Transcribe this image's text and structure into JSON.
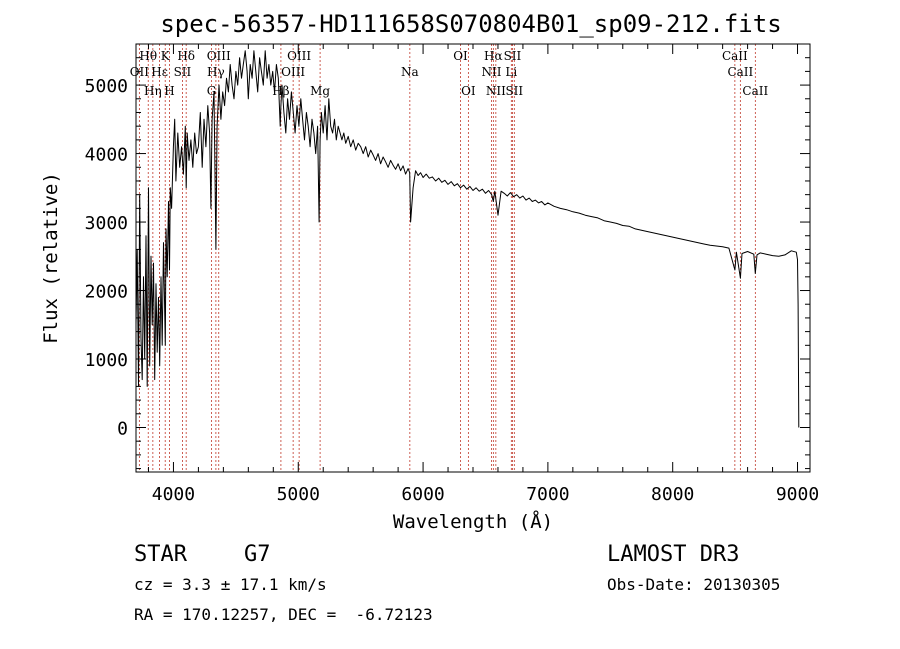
{
  "chart_data": {
    "type": "line",
    "title": "spec-56357-HD111658S070804B01_sp09-212.fits",
    "xlabel": "Wavelength (Å)",
    "ylabel": "Flux (relative)",
    "xlim": [
      3700,
      9100
    ],
    "ylim": [
      -650,
      5600
    ],
    "x_ticks": [
      4000,
      5000,
      6000,
      7000,
      8000,
      9000
    ],
    "y_ticks": [
      0,
      1000,
      2000,
      3000,
      4000,
      5000
    ],
    "x_tick_labels": [
      "4000",
      "5000",
      "6000",
      "7000",
      "8000",
      "9000"
    ],
    "y_tick_labels": [
      "0",
      "1000",
      "2000",
      "3000",
      "4000",
      "5000"
    ],
    "series": [
      {
        "name": "spectrum",
        "x": [
          3700,
          3710,
          3720,
          3730,
          3740,
          3750,
          3760,
          3770,
          3780,
          3790,
          3800,
          3810,
          3820,
          3830,
          3840,
          3850,
          3860,
          3870,
          3880,
          3890,
          3900,
          3910,
          3920,
          3930,
          3935,
          3940,
          3950,
          3960,
          3968,
          3975,
          3985,
          4000,
          4010,
          4020,
          4035,
          4050,
          4065,
          4080,
          4095,
          4102,
          4110,
          4125,
          4140,
          4155,
          4170,
          4185,
          4200,
          4215,
          4230,
          4245,
          4260,
          4275,
          4290,
          4300,
          4310,
          4325,
          4340,
          4350,
          4365,
          4380,
          4395,
          4410,
          4425,
          4440,
          4455,
          4470,
          4485,
          4500,
          4515,
          4530,
          4545,
          4560,
          4575,
          4590,
          4600,
          4615,
          4630,
          4645,
          4660,
          4675,
          4690,
          4705,
          4720,
          4735,
          4750,
          4765,
          4780,
          4795,
          4810,
          4825,
          4840,
          4855,
          4861,
          4870,
          4885,
          4900,
          4915,
          4930,
          4945,
          4960,
          4975,
          4990,
          5005,
          5020,
          5035,
          5050,
          5065,
          5080,
          5095,
          5110,
          5125,
          5140,
          5155,
          5167,
          5175,
          5185,
          5200,
          5215,
          5230,
          5245,
          5260,
          5275,
          5290,
          5305,
          5320,
          5335,
          5350,
          5365,
          5380,
          5400,
          5420,
          5440,
          5460,
          5480,
          5500,
          5520,
          5540,
          5560,
          5580,
          5600,
          5620,
          5640,
          5660,
          5680,
          5700,
          5720,
          5740,
          5760,
          5780,
          5800,
          5820,
          5840,
          5860,
          5880,
          5893,
          5900,
          5920,
          5940,
          5960,
          5980,
          6000,
          6025,
          6050,
          6075,
          6100,
          6125,
          6150,
          6175,
          6200,
          6225,
          6250,
          6275,
          6300,
          6325,
          6350,
          6375,
          6400,
          6425,
          6450,
          6475,
          6500,
          6525,
          6550,
          6563,
          6575,
          6600,
          6625,
          6650,
          6675,
          6700,
          6725,
          6750,
          6775,
          6800,
          6825,
          6850,
          6875,
          6900,
          6925,
          6950,
          6975,
          7000,
          7050,
          7100,
          7150,
          7200,
          7250,
          7300,
          7350,
          7400,
          7450,
          7500,
          7550,
          7600,
          7650,
          7700,
          7750,
          7800,
          7850,
          7900,
          7950,
          8000,
          8050,
          8100,
          8150,
          8200,
          8250,
          8300,
          8350,
          8400,
          8450,
          8498,
          8510,
          8542,
          8555,
          8600,
          8650,
          8662,
          8675,
          8700,
          8750,
          8800,
          8850,
          8900,
          8950,
          8990,
          9000,
          9005,
          9010
        ],
        "values": [
          1500,
          2600,
          600,
          3400,
          1300,
          700,
          2200,
          1000,
          2800,
          600,
          3500,
          900,
          2500,
          1500,
          2400,
          700,
          2100,
          1100,
          1900,
          900,
          2200,
          1200,
          2700,
          1700,
          1200,
          2900,
          2200,
          3300,
          2300,
          3500,
          3200,
          4100,
          4500,
          3600,
          4300,
          3800,
          4100,
          3700,
          4400,
          3500,
          4300,
          3900,
          4200,
          3800,
          4300,
          4000,
          4100,
          4600,
          3800,
          4500,
          4100,
          4700,
          4300,
          3200,
          4500,
          4900,
          2600,
          4400,
          5000,
          4500,
          4900,
          4700,
          5100,
          4900,
          5300,
          5000,
          4800,
          5200,
          5000,
          5400,
          5100,
          5300,
          5500,
          5200,
          4800,
          5300,
          5100,
          5500,
          5200,
          4900,
          5400,
          5200,
          5000,
          5500,
          5100,
          5300,
          5000,
          5200,
          4900,
          5300,
          5100,
          4400,
          4700,
          5000,
          4600,
          4300,
          4800,
          4500,
          4900,
          4600,
          4300,
          4700,
          4400,
          4800,
          4500,
          4200,
          4600,
          4400,
          4100,
          4500,
          4300,
          4000,
          4400,
          3000,
          4200,
          4600,
          4300,
          4700,
          4200,
          4800,
          4400,
          4300,
          4500,
          4200,
          4400,
          4300,
          4200,
          4300,
          4150,
          4250,
          4100,
          4200,
          4050,
          4150,
          4100,
          4000,
          4100,
          3950,
          4050,
          3980,
          3900,
          4000,
          3850,
          3950,
          3880,
          3800,
          3900,
          3830,
          3770,
          3850,
          3750,
          3820,
          3700,
          3780,
          3720,
          3000,
          3500,
          3750,
          3680,
          3720,
          3650,
          3700,
          3640,
          3660,
          3600,
          3640,
          3580,
          3610,
          3550,
          3590,
          3530,
          3560,
          3500,
          3540,
          3480,
          3520,
          3460,
          3500,
          3450,
          3480,
          3420,
          3460,
          3400,
          3300,
          3450,
          3100,
          3450,
          3420,
          3380,
          3430,
          3370,
          3400,
          3350,
          3380,
          3320,
          3350,
          3300,
          3320,
          3280,
          3300,
          3250,
          3280,
          3230,
          3200,
          3180,
          3150,
          3130,
          3100,
          3080,
          3060,
          3020,
          3000,
          2980,
          2950,
          2940,
          2900,
          2880,
          2860,
          2840,
          2820,
          2800,
          2780,
          2760,
          2740,
          2720,
          2700,
          2680,
          2660,
          2650,
          2640,
          2620,
          2300,
          2560,
          2180,
          2540,
          2570,
          2530,
          2250,
          2520,
          2550,
          2530,
          2510,
          2500,
          2520,
          2580,
          2560,
          2450,
          1800,
          0
        ]
      }
    ],
    "spectral_lines": [
      {
        "name": "Hθ",
        "wavelength": 3798,
        "row": 1
      },
      {
        "name": "OII",
        "wavelength": 3727,
        "row": 2
      },
      {
        "name": "Hη",
        "wavelength": 3835,
        "row": 3
      },
      {
        "name": "Hε",
        "wavelength": 3889,
        "row": 2
      },
      {
        "name": "K",
        "wavelength": 3934,
        "row": 1
      },
      {
        "name": "H",
        "wavelength": 3968,
        "row": 3
      },
      {
        "name": "SII",
        "wavelength": 4072,
        "row": 2
      },
      {
        "name": "Hδ",
        "wavelength": 4102,
        "row": 1
      },
      {
        "name": "G",
        "wavelength": 4305,
        "row": 3
      },
      {
        "name": "Hγ",
        "wavelength": 4340,
        "row": 2
      },
      {
        "name": "OIII",
        "wavelength": 4363,
        "row": 1
      },
      {
        "name": "Hβ",
        "wavelength": 4861,
        "row": 3
      },
      {
        "name": "OIII",
        "wavelength": 4959,
        "row": 2
      },
      {
        "name": "OIII",
        "wavelength": 5007,
        "row": 1
      },
      {
        "name": "Mg",
        "wavelength": 5175,
        "row": 3
      },
      {
        "name": "Na",
        "wavelength": 5894,
        "row": 2
      },
      {
        "name": "OI",
        "wavelength": 6300,
        "row": 1
      },
      {
        "name": "OI",
        "wavelength": 6363,
        "row": 3
      },
      {
        "name": "NII",
        "wavelength": 6548,
        "row": 2
      },
      {
        "name": "Hα",
        "wavelength": 6563,
        "row": 1
      },
      {
        "name": "NII",
        "wavelength": 6583,
        "row": 3
      },
      {
        "name": "Li",
        "wavelength": 6707,
        "row": 2
      },
      {
        "name": "SII",
        "wavelength": 6716,
        "row": 1
      },
      {
        "name": "SII",
        "wavelength": 6731,
        "row": 3
      },
      {
        "name": "CaII",
        "wavelength": 8498,
        "row": 1
      },
      {
        "name": "CaII",
        "wavelength": 8542,
        "row": 2
      },
      {
        "name": "CaII",
        "wavelength": 8662,
        "row": 3
      }
    ]
  },
  "info": {
    "object_class": "STAR",
    "subclass": "G7",
    "survey": "LAMOST DR3",
    "cz": "cz = 3.3 ± 17.1 km/s",
    "obs_date": "Obs-Date: 20130305",
    "coords": "RA = 170.12257, DEC =  -6.72123"
  },
  "colors": {
    "spectrum": "#000000",
    "line_marker": "#c0392b",
    "axis": "#000000"
  }
}
